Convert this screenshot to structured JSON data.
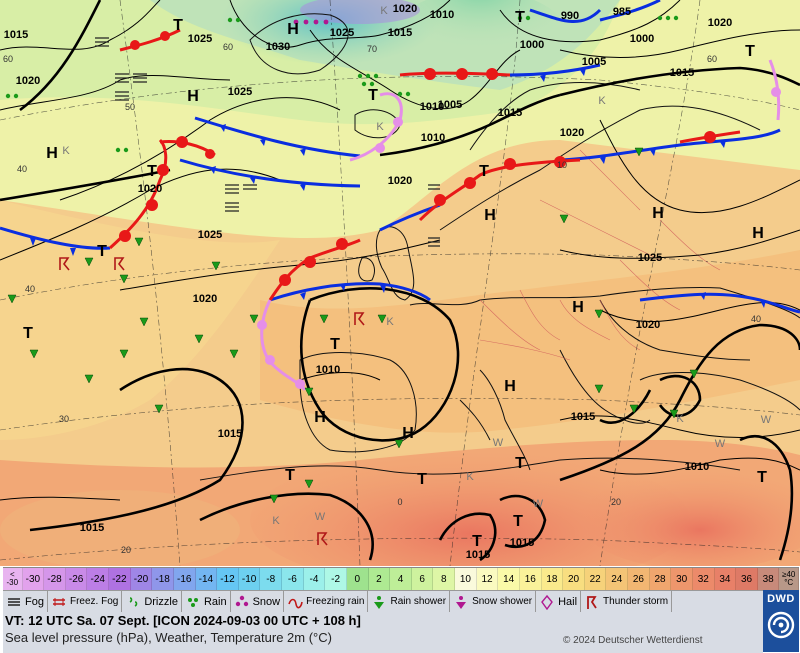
{
  "map": {
    "pressure_labels": [
      {
        "text": "1015"
      },
      {
        "text": "1020"
      },
      {
        "text": "1025"
      },
      {
        "text": "1030"
      },
      {
        "text": "1025"
      },
      {
        "text": "1015"
      },
      {
        "text": "1020"
      },
      {
        "text": "1010"
      },
      {
        "text": "990"
      },
      {
        "text": "985"
      },
      {
        "text": "1000"
      },
      {
        "text": "1000"
      },
      {
        "text": "1020"
      },
      {
        "text": "1005"
      },
      {
        "text": "1015"
      },
      {
        "text": "1025"
      },
      {
        "text": "1005"
      },
      {
        "text": "1010"
      },
      {
        "text": "1015"
      },
      {
        "text": "1020"
      },
      {
        "text": "1020"
      },
      {
        "text": "1020"
      },
      {
        "text": "1025"
      },
      {
        "text": "1020"
      },
      {
        "text": "1025"
      },
      {
        "text": "1020"
      },
      {
        "text": "1010"
      },
      {
        "text": "1015"
      },
      {
        "text": "1015"
      },
      {
        "text": "1010"
      },
      {
        "text": "1015"
      },
      {
        "text": "1015"
      },
      {
        "text": "1015"
      },
      {
        "text": "1010"
      }
    ],
    "centers": [
      {
        "text": "H"
      },
      {
        "text": "H"
      },
      {
        "text": "T"
      },
      {
        "text": "H"
      },
      {
        "text": "T"
      },
      {
        "text": "T"
      },
      {
        "text": "T"
      },
      {
        "text": "T"
      },
      {
        "text": "H"
      },
      {
        "text": "H"
      },
      {
        "text": "T"
      },
      {
        "text": "T"
      },
      {
        "text": "H"
      },
      {
        "text": "T"
      },
      {
        "text": "T"
      },
      {
        "text": "H"
      },
      {
        "text": "H"
      },
      {
        "text": "H"
      },
      {
        "text": "H"
      },
      {
        "text": "T"
      },
      {
        "text": "T"
      },
      {
        "text": "T"
      },
      {
        "text": "T"
      },
      {
        "text": "T"
      },
      {
        "text": "T"
      }
    ],
    "grid_labels": [
      {
        "text": "60"
      },
      {
        "text": "60"
      },
      {
        "text": "50"
      },
      {
        "text": "40"
      },
      {
        "text": "40"
      },
      {
        "text": "30"
      },
      {
        "text": "20"
      },
      {
        "text": "20"
      },
      {
        "text": "0"
      },
      {
        "text": "10"
      },
      {
        "text": "40"
      },
      {
        "text": "60"
      },
      {
        "text": "70"
      }
    ],
    "tiny_labels": [
      {
        "text": "K"
      },
      {
        "text": "K"
      },
      {
        "text": "K"
      },
      {
        "text": "K"
      },
      {
        "text": "K"
      },
      {
        "text": "K"
      },
      {
        "text": "K"
      },
      {
        "text": "W"
      },
      {
        "text": "W"
      },
      {
        "text": "W"
      },
      {
        "text": "W"
      },
      {
        "text": "W"
      },
      {
        "text": "K"
      }
    ],
    "colors": {
      "sea_cold": "#bfe3b8",
      "sea_mid": "#eef2a8",
      "land_warm": "#f4c48e",
      "hot": "#f08a6e",
      "cold_front": "#0a2ee0",
      "warm_front": "#e81818",
      "occlusion": "#e58ee8",
      "isobar": "#000000"
    }
  },
  "scale": {
    "cells": [
      {
        "label": "-30"
      },
      {
        "label": "-28"
      },
      {
        "label": "-26"
      },
      {
        "label": "-24"
      },
      {
        "label": "-22"
      },
      {
        "label": "-20"
      },
      {
        "label": "-18"
      },
      {
        "label": "-16"
      },
      {
        "label": "-14"
      },
      {
        "label": "-12"
      },
      {
        "label": "-10"
      },
      {
        "label": "-8"
      },
      {
        "label": "-6"
      },
      {
        "label": "-4"
      },
      {
        "label": "-2"
      },
      {
        "label": "0"
      },
      {
        "label": "2"
      },
      {
        "label": "4"
      },
      {
        "label": "6"
      },
      {
        "label": "8"
      },
      {
        "label": "10"
      },
      {
        "label": "12"
      },
      {
        "label": "14"
      },
      {
        "label": "16"
      },
      {
        "label": "18"
      },
      {
        "label": "20"
      },
      {
        "label": "22"
      },
      {
        "label": "24"
      },
      {
        "label": "26"
      },
      {
        "label": "28"
      },
      {
        "label": "30"
      },
      {
        "label": "32"
      },
      {
        "label": "34"
      },
      {
        "label": "36"
      },
      {
        "label": "38"
      }
    ],
    "colors": [
      "#e2a2ec",
      "#d596ea",
      "#c98ae8",
      "#bc7ee6",
      "#af72e2",
      "#9f86e6",
      "#8f96ea",
      "#81a6ee",
      "#73b6f2",
      "#65c6f4",
      "#6dd0f0",
      "#7cdcee",
      "#8be6ec",
      "#9cf0ea",
      "#aef8e6",
      "#9ee28e",
      "#aeea92",
      "#beee98",
      "#cef29e",
      "#def6a6",
      "#fafadc",
      "#fafac0",
      "#fafaa8",
      "#faf29a",
      "#faea8c",
      "#f8de80",
      "#f6d27a",
      "#f4c476",
      "#f2b672",
      "#f0a66e",
      "#ee966c",
      "#ec8a6a",
      "#e88068",
      "#de7a66",
      "#c88a7a"
    ],
    "low_top": "<",
    "low_bottom": "-30",
    "high_top": "≥40",
    "high_bottom": "°C"
  },
  "legend": {
    "items": [
      {
        "icon": "fog-icon",
        "label": "Fog"
      },
      {
        "icon": "freezing-fog-icon",
        "label": "Freez. Fog"
      },
      {
        "icon": "drizzle-icon",
        "label": "Drizzle"
      },
      {
        "icon": "rain-icon",
        "label": "Rain"
      },
      {
        "icon": "snow-icon",
        "label": "Snow"
      },
      {
        "icon": "freezing-rain-icon",
        "label": "Freezing rain"
      },
      {
        "icon": "rain-shower-icon",
        "label": "Rain shower"
      },
      {
        "icon": "snow-shower-icon",
        "label": "Snow shower"
      },
      {
        "icon": "hail-icon",
        "label": "Hail"
      },
      {
        "icon": "thunderstorm-icon",
        "label": "Thunder storm"
      }
    ]
  },
  "info": {
    "valid_time": "VT: 12 UTC Sa.  07 Sept. [ICON 2024-09-03  00 UTC + 108 h]",
    "description": "Sea level pressure (hPa), Weather, Temperature 2m (°C)",
    "copyright": "© 2024 Deutscher Wetterdienst",
    "logo_text": "DWD"
  }
}
